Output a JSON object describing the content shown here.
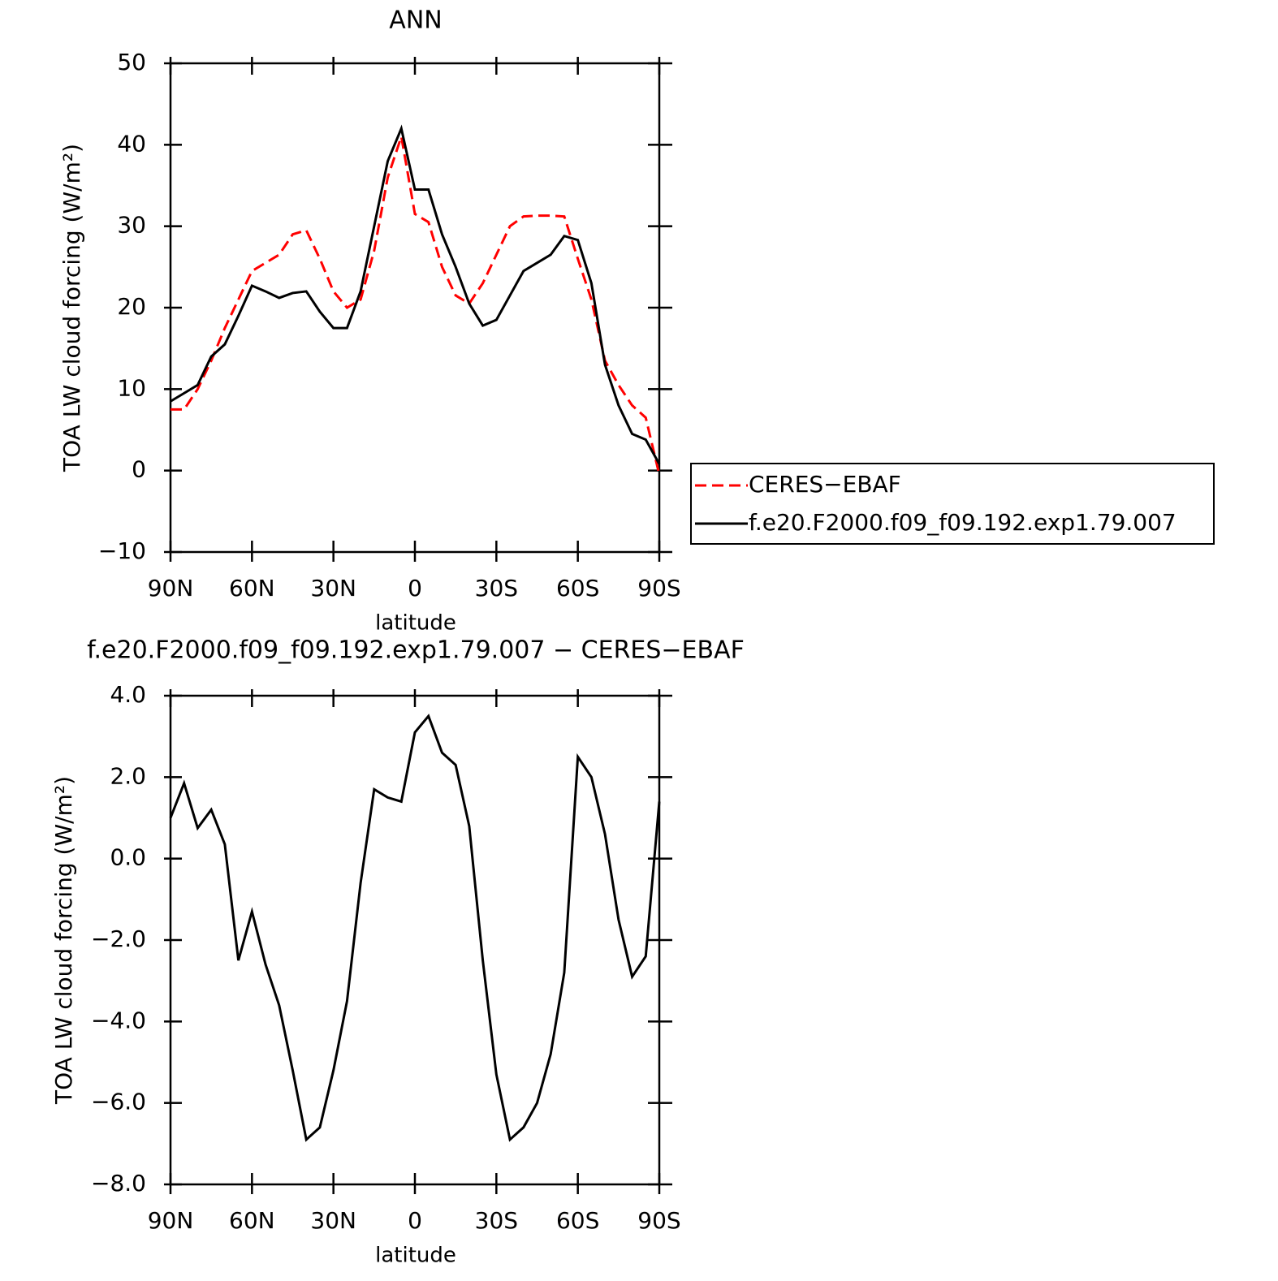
{
  "chart_data": [
    {
      "type": "line",
      "title": "ANN",
      "xlabel": "latitude",
      "ylabel": "TOA LW cloud forcing (W/m²)",
      "x": [
        90,
        85,
        80,
        75,
        70,
        65,
        60,
        55,
        50,
        45,
        40,
        35,
        30,
        25,
        20,
        15,
        10,
        5,
        0,
        -5,
        -10,
        -15,
        -20,
        -25,
        -30,
        -35,
        -40,
        -45,
        -50,
        -55,
        -60,
        -65,
        -70,
        -75,
        -80,
        -85,
        -90
      ],
      "xlim": [
        90,
        -90
      ],
      "xticks": [
        {
          "value": 90,
          "label": "90N"
        },
        {
          "value": 60,
          "label": "60N"
        },
        {
          "value": 30,
          "label": "30N"
        },
        0,
        {
          "value": -30,
          "label": "30S"
        },
        {
          "value": -60,
          "label": "60S"
        },
        {
          "value": -90,
          "label": "90S"
        }
      ],
      "ylim": [
        -10,
        50
      ],
      "yticks": [
        {
          "value": -10,
          "label": "−10"
        },
        0,
        10,
        20,
        30,
        40,
        50
      ],
      "legend": "right",
      "series": [
        {
          "name": "CERES−EBAF",
          "color": "#ff0000",
          "linestyle": "dashed",
          "values": [
            7.5,
            7.5,
            10,
            13.5,
            17.5,
            21,
            24.5,
            25.5,
            26.5,
            29,
            29.5,
            26,
            22,
            20,
            21,
            27,
            36,
            41,
            31.5,
            30.5,
            25,
            21.5,
            20.5,
            23,
            26.5,
            30,
            31.2,
            31.3,
            31.3,
            31.2,
            26,
            21,
            13.5,
            10.5,
            8,
            6.5,
            -0.5
          ]
        },
        {
          "name": "f.e20.F2000.f09_f09.192.exp1.79.007",
          "color": "#000000",
          "linestyle": "solid",
          "values": [
            8.5,
            9.5,
            10.5,
            14,
            15.5,
            19,
            22.7,
            22,
            21.2,
            21.8,
            22,
            19.5,
            17.5,
            17.5,
            22,
            30,
            38,
            42,
            34.5,
            34.5,
            29,
            25,
            20.5,
            17.8,
            18.5,
            21.5,
            24.5,
            25.5,
            26.5,
            28.8,
            28.3,
            23,
            13,
            8,
            4.5,
            3.8,
            0.8
          ]
        }
      ]
    },
    {
      "type": "line",
      "title": "f.e20.F2000.f09_f09.192.exp1.79.007 − CERES−EBAF",
      "xlabel": "latitude",
      "ylabel": "TOA LW cloud forcing (W/m²)",
      "x": [
        90,
        85,
        80,
        75,
        70,
        65,
        60,
        55,
        50,
        45,
        40,
        35,
        30,
        25,
        20,
        15,
        10,
        5,
        0,
        -5,
        -10,
        -15,
        -20,
        -25,
        -30,
        -35,
        -40,
        -45,
        -50,
        -55,
        -60,
        -65,
        -70,
        -75,
        -80,
        -85,
        -90
      ],
      "xlim": [
        90,
        -90
      ],
      "xticks": [
        {
          "value": 90,
          "label": "90N"
        },
        {
          "value": 60,
          "label": "60N"
        },
        {
          "value": 30,
          "label": "30N"
        },
        0,
        {
          "value": -30,
          "label": "30S"
        },
        {
          "value": -60,
          "label": "60S"
        },
        {
          "value": -90,
          "label": "90S"
        }
      ],
      "ylim": [
        -8,
        4
      ],
      "yticks": [
        {
          "value": -8,
          "label": "−8.0"
        },
        {
          "value": -6,
          "label": "−6.0"
        },
        {
          "value": -4,
          "label": "−4.0"
        },
        {
          "value": -2,
          "label": "−2.0"
        },
        {
          "value": 0,
          "label": "0.0"
        },
        {
          "value": 2,
          "label": "2.0"
        },
        {
          "value": 4,
          "label": "4.0"
        }
      ],
      "color": "#000000",
      "values": [
        1.0,
        1.85,
        0.75,
        1.2,
        0.35,
        -2.5,
        -1.3,
        -2.6,
        -3.6,
        -5.2,
        -6.9,
        -6.6,
        -5.2,
        -3.5,
        -0.6,
        1.7,
        1.5,
        1.4,
        3.1,
        3.5,
        2.6,
        2.3,
        0.8,
        -2.5,
        -5.3,
        -6.9,
        -6.6,
        -6.0,
        -4.8,
        -2.8,
        2.5,
        2.0,
        0.6,
        -1.5,
        -2.9,
        -2.4,
        1.4
      ]
    }
  ]
}
